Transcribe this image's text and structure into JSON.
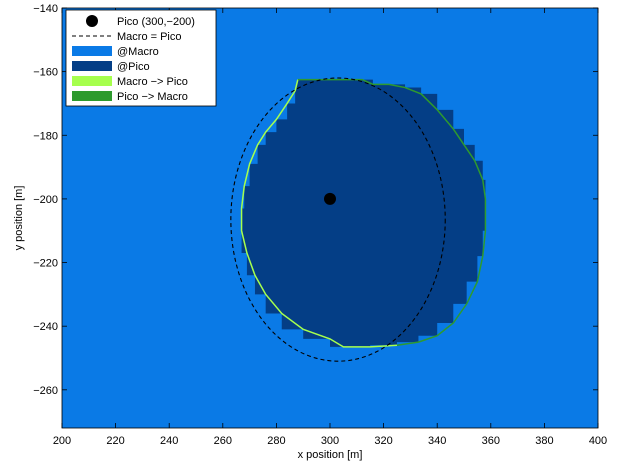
{
  "chart_data": {
    "type": "heatmap",
    "xlabel": "x position [m]",
    "ylabel": "y position [m]",
    "xlim": [
      200,
      400
    ],
    "ylim": [
      -272,
      -140
    ],
    "xticks": [
      200,
      220,
      240,
      260,
      280,
      300,
      320,
      340,
      360,
      380,
      400
    ],
    "yticks": [
      -140,
      -160,
      -180,
      -200,
      -220,
      -240,
      -260
    ],
    "xtick_labels": [
      "200",
      "220",
      "240",
      "260",
      "280",
      "300",
      "320",
      "340",
      "360",
      "380",
      "400"
    ],
    "ytick_labels": [
      "−140",
      "−160",
      "−180",
      "−200",
      "−220",
      "−240",
      "−260"
    ],
    "grid": false,
    "legend_position": "top-left",
    "legend": [
      {
        "label": "Pico (300,−200)",
        "marker": "dot",
        "color": "#000000"
      },
      {
        "label": "Macro = Pico",
        "marker": "dashed-line",
        "color": "#000000"
      },
      {
        "label": "@Macro",
        "marker": "patch",
        "color": "#0A7AE6"
      },
      {
        "label": "@Pico",
        "marker": "patch",
        "color": "#043E86"
      },
      {
        "label": "Macro −> Pico",
        "marker": "patch",
        "color": "#A6FF4D"
      },
      {
        "label": "Pico −> Macro",
        "marker": "patch",
        "color": "#2E9A2E"
      }
    ],
    "background_region": {
      "name": "@Macro",
      "color": "#0A7AE6"
    },
    "pico_region": {
      "name": "@Pico",
      "color": "#043E86",
      "boundary_left_edge_color": "#A6FF4D",
      "boundary_right_edge_color": "#2E9A2E",
      "boundary": [
        [
          288,
          -162.5
        ],
        [
          312,
          -162.5
        ],
        [
          316,
          -164
        ],
        [
          322,
          -164
        ],
        [
          328,
          -165
        ],
        [
          334,
          -167
        ],
        [
          340,
          -172
        ],
        [
          346,
          -178
        ],
        [
          350,
          -183
        ],
        [
          354,
          -188
        ],
        [
          357,
          -194
        ],
        [
          358,
          -200
        ],
        [
          358,
          -210
        ],
        [
          357,
          -218
        ],
        [
          355,
          -226
        ],
        [
          351,
          -233
        ],
        [
          346,
          -239
        ],
        [
          340,
          -243
        ],
        [
          333,
          -245
        ],
        [
          325,
          -246
        ],
        [
          315,
          -246.5
        ],
        [
          305,
          -246.5
        ],
        [
          300,
          -244
        ],
        [
          290,
          -241
        ],
        [
          282,
          -236
        ],
        [
          276,
          -230
        ],
        [
          272,
          -224
        ],
        [
          269,
          -217
        ],
        [
          267,
          -210
        ],
        [
          267,
          -203
        ],
        [
          268,
          -196
        ],
        [
          270,
          -189
        ],
        [
          273,
          -183
        ],
        [
          276,
          -179
        ],
        [
          280,
          -175
        ],
        [
          284,
          -170
        ],
        [
          287,
          -166
        ]
      ]
    },
    "pico_position": {
      "x": 300,
      "y": -200,
      "color": "#000000"
    },
    "equal_power_contour": {
      "center_x": 303,
      "center_y": -206.5,
      "radius_x": 40,
      "radius_y": 44.5,
      "style": "dashed",
      "color": "#000000"
    }
  }
}
